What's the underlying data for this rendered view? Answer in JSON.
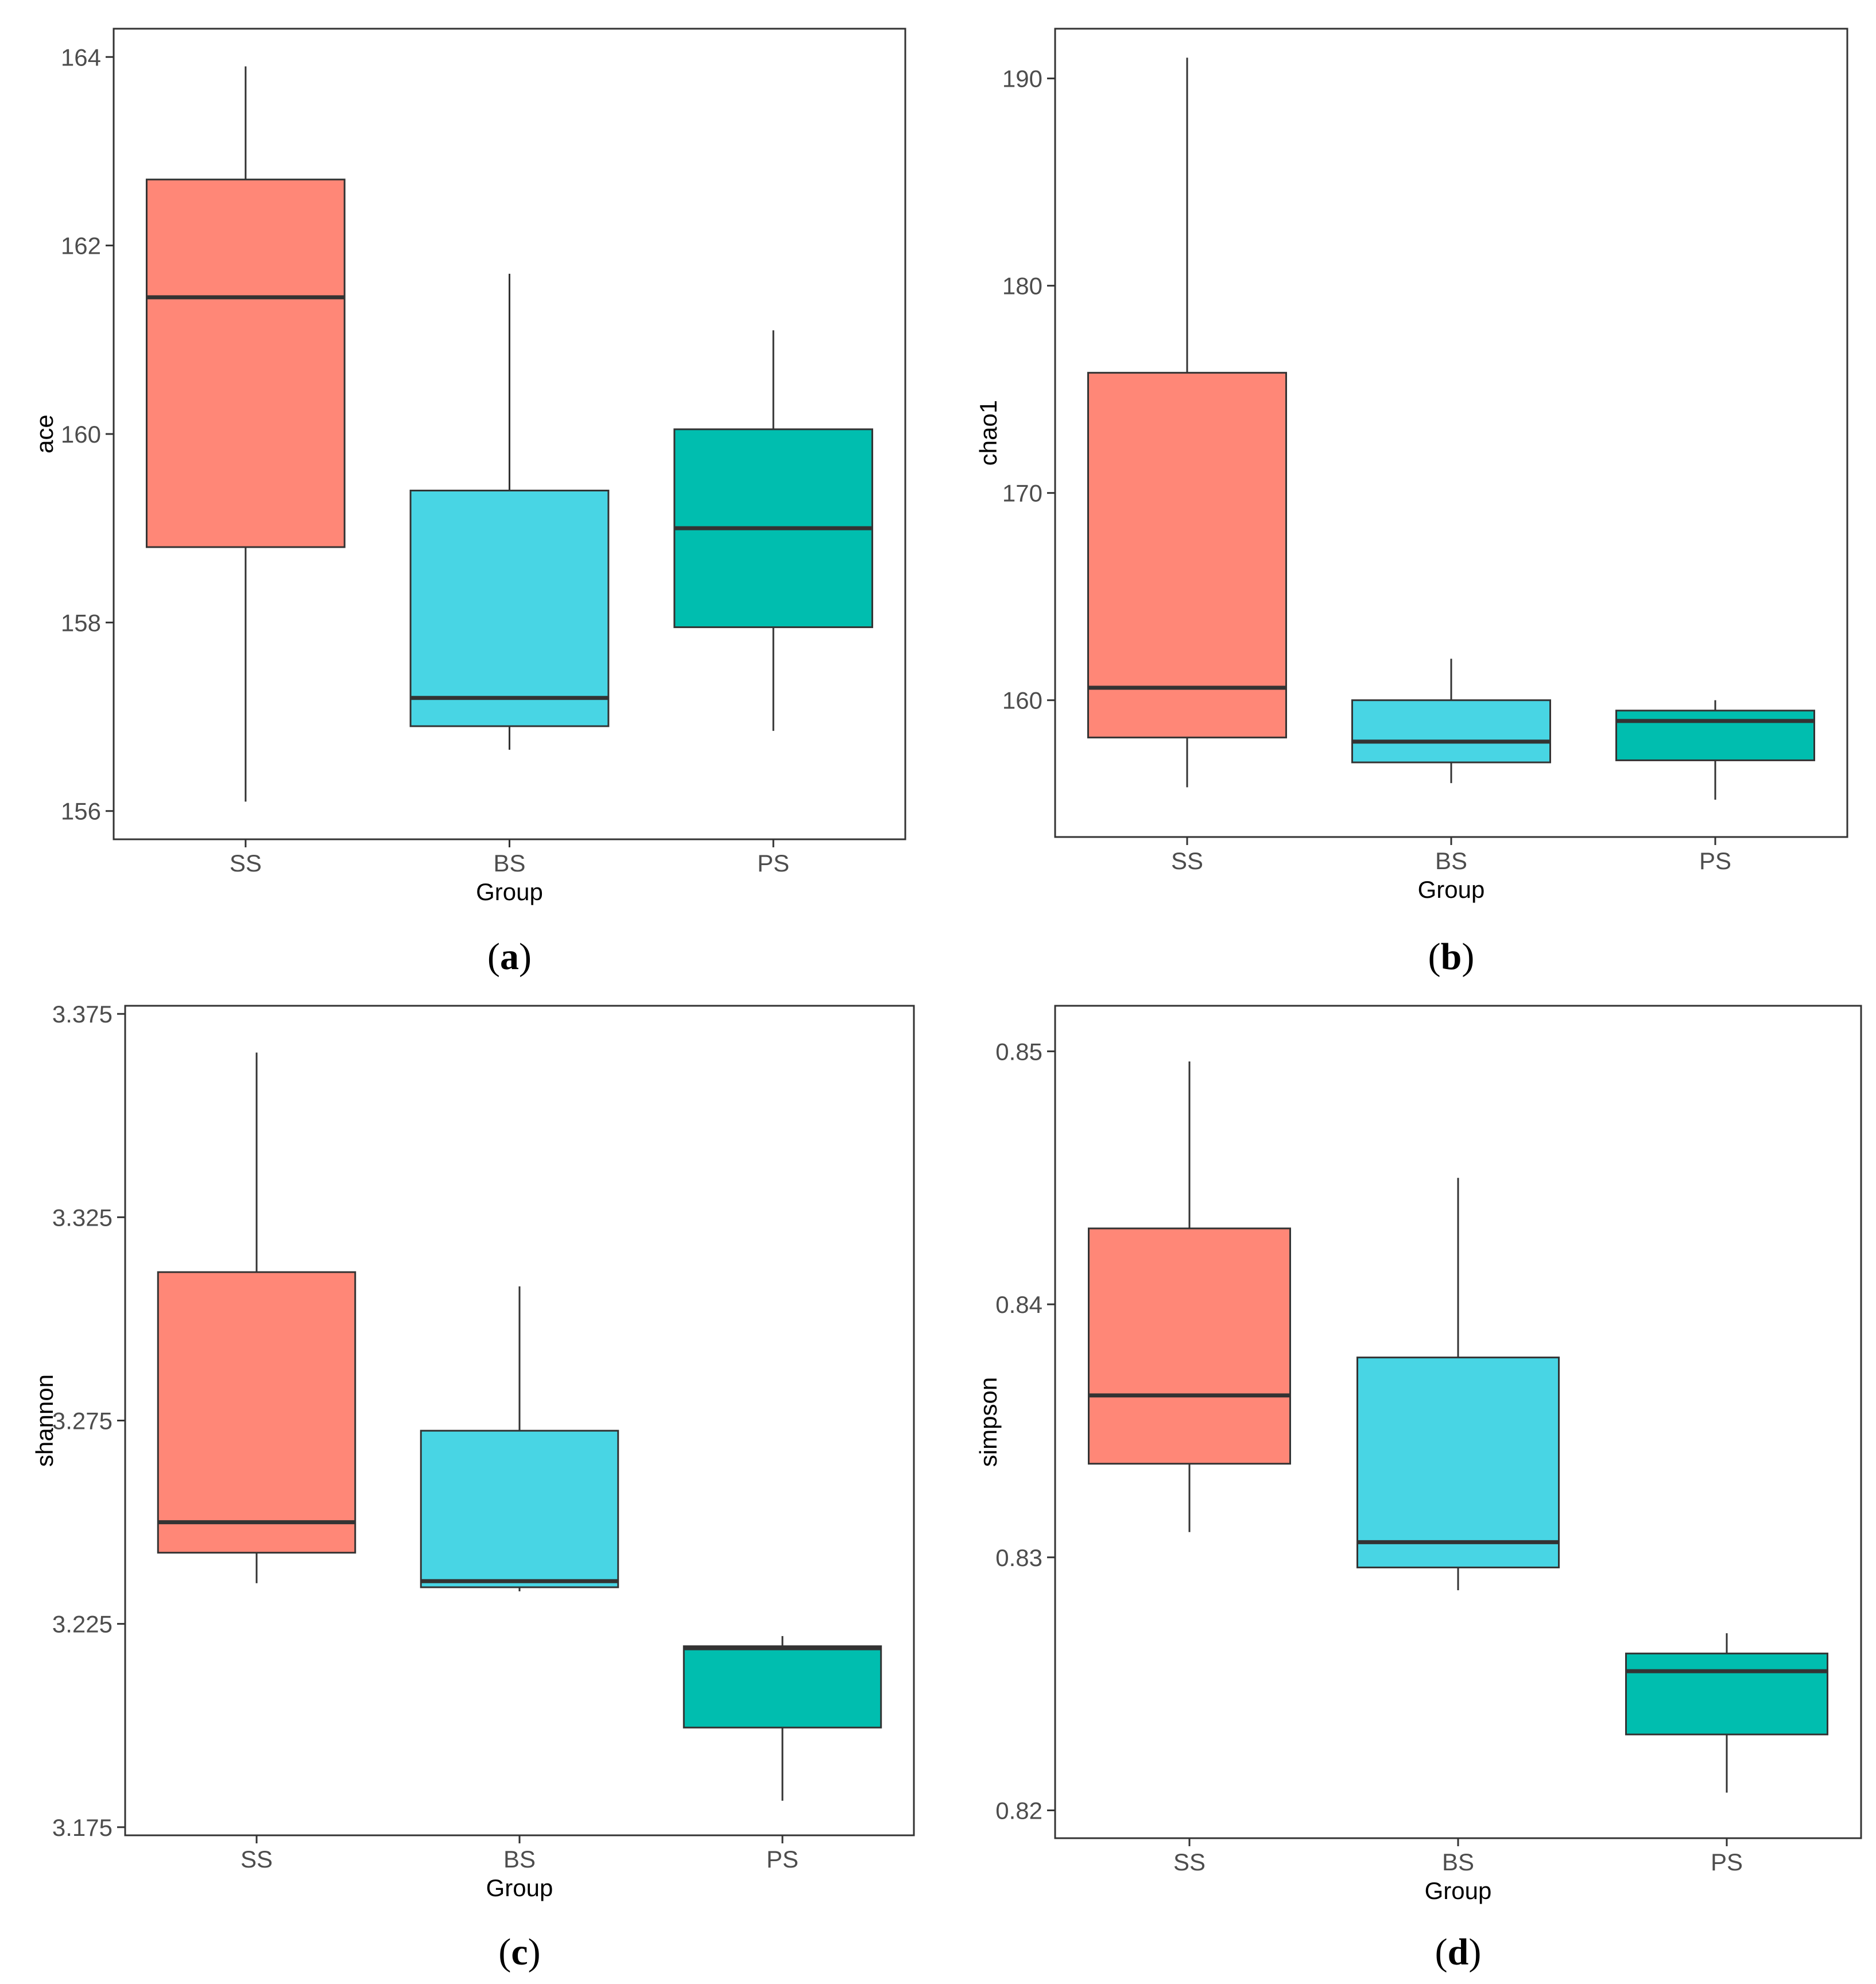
{
  "chart_data": [
    {
      "type": "boxplot",
      "panel_label": "a",
      "xlabel": "Group",
      "ylabel": "ace",
      "ylim": [
        155.7,
        164.3
      ],
      "yticks": [
        156,
        158,
        160,
        162,
        164
      ],
      "tick_decimals": 0,
      "categories": [
        "SS",
        "BS",
        "PS"
      ],
      "colors": [
        "#FF8777",
        "#48D5E4",
        "#00BEAF"
      ],
      "boxes": [
        {
          "min": 156.1,
          "q1": 158.8,
          "median": 161.45,
          "q3": 162.7,
          "max": 163.9
        },
        {
          "min": 156.65,
          "q1": 156.9,
          "median": 157.2,
          "q3": 159.4,
          "max": 161.7
        },
        {
          "min": 156.85,
          "q1": 157.95,
          "median": 159.0,
          "q3": 160.05,
          "max": 161.1
        }
      ]
    },
    {
      "type": "boxplot",
      "panel_label": "b",
      "xlabel": "Group",
      "ylabel": "chao1",
      "ylim": [
        153.4,
        192.4
      ],
      "yticks": [
        160,
        170,
        180,
        190
      ],
      "tick_decimals": 0,
      "categories": [
        "SS",
        "BS",
        "PS"
      ],
      "colors": [
        "#FF8777",
        "#48D5E4",
        "#00BEAF"
      ],
      "boxes": [
        {
          "min": 155.8,
          "q1": 158.2,
          "median": 160.6,
          "q3": 175.8,
          "max": 191.0
        },
        {
          "min": 156.0,
          "q1": 157.0,
          "median": 158.0,
          "q3": 160.0,
          "max": 162.0
        },
        {
          "min": 155.2,
          "q1": 157.1,
          "median": 159.0,
          "q3": 159.5,
          "max": 160.0
        }
      ]
    },
    {
      "type": "boxplot",
      "panel_label": "c",
      "xlabel": "Group",
      "ylabel": "shannon",
      "ylim": [
        3.173,
        3.377
      ],
      "yticks": [
        3.175,
        3.225,
        3.275,
        3.325,
        3.375
      ],
      "tick_decimals": 3,
      "categories": [
        "SS",
        "BS",
        "PS"
      ],
      "colors": [
        "#FF8777",
        "#48D5E4",
        "#00BEAF"
      ],
      "boxes": [
        {
          "min": 3.235,
          "q1": 3.2425,
          "median": 3.25,
          "q3": 3.3115,
          "max": 3.3655
        },
        {
          "min": 3.233,
          "q1": 3.234,
          "median": 3.2355,
          "q3": 3.2725,
          "max": 3.308
        },
        {
          "min": 3.1815,
          "q1": 3.1995,
          "median": 3.219,
          "q3": 3.2195,
          "max": 3.222
        }
      ]
    },
    {
      "type": "boxplot",
      "panel_label": "d",
      "xlabel": "Group",
      "ylabel": "simpson",
      "ylim": [
        0.8189,
        0.8518
      ],
      "yticks": [
        0.82,
        0.83,
        0.84,
        0.85
      ],
      "tick_decimals": 2,
      "categories": [
        "SS",
        "BS",
        "PS"
      ],
      "colors": [
        "#FF8777",
        "#48D5E4",
        "#00BEAF"
      ],
      "boxes": [
        {
          "min": 0.831,
          "q1": 0.8337,
          "median": 0.8364,
          "q3": 0.843,
          "max": 0.8496
        },
        {
          "min": 0.8287,
          "q1": 0.8296,
          "median": 0.8306,
          "q3": 0.8379,
          "max": 0.845
        },
        {
          "min": 0.8207,
          "q1": 0.823,
          "median": 0.8255,
          "q3": 0.8262,
          "max": 0.827
        }
      ]
    }
  ]
}
